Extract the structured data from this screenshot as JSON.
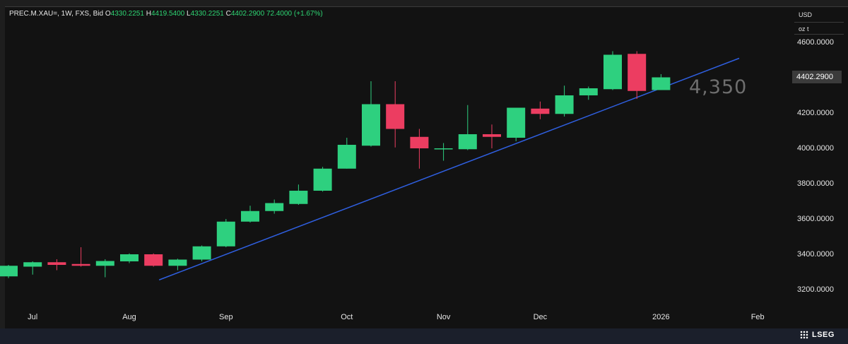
{
  "header": {
    "symbol": "PREC.M.XAU=, 1W, FXS, Bid",
    "open_label": "O",
    "open": "4330.2251",
    "high_label": "H",
    "high": "4419.5400",
    "low_label": "L",
    "low": "4330.2251",
    "close_label": "C",
    "close": "4402.2900",
    "change": "72.4000 (+1.67%)"
  },
  "units": {
    "currency": "USD",
    "weight": "oz t"
  },
  "last_price_label": "4402.2900",
  "annotation": "4,350",
  "brand": "LSEG",
  "colors": {
    "up": "#2ed07f",
    "down": "#ec3d61",
    "trendline": "#2f5fe0",
    "background": "#121212"
  },
  "chart_data": {
    "type": "candlestick",
    "interval": "1W",
    "ylim": [
      3100,
      4700
    ],
    "yticks": [
      "3200.0000",
      "3400.0000",
      "3600.0000",
      "3800.0000",
      "4000.0000",
      "4200.0000",
      "4400.0000",
      "4600.0000"
    ],
    "ytick_values": [
      3200,
      3400,
      3600,
      3800,
      4000,
      4200,
      4400,
      4600
    ],
    "xlabels": [
      {
        "label": "Jul",
        "week": 1
      },
      {
        "label": "Aug",
        "week": 5
      },
      {
        "label": "Sep",
        "week": 9
      },
      {
        "label": "Oct",
        "week": 14
      },
      {
        "label": "Nov",
        "week": 18
      },
      {
        "label": "Dec",
        "week": 22
      },
      {
        "label": "2026",
        "week": 27
      },
      {
        "label": "Feb",
        "week": 31
      }
    ],
    "candles": [
      {
        "week": 0,
        "o": 3275,
        "h": 3340,
        "l": 3265,
        "c": 3335
      },
      {
        "week": 1,
        "o": 3330,
        "h": 3360,
        "l": 3285,
        "c": 3355
      },
      {
        "week": 2,
        "o": 3355,
        "h": 3372,
        "l": 3310,
        "c": 3340
      },
      {
        "week": 3,
        "o": 3345,
        "h": 3440,
        "l": 3330,
        "c": 3335
      },
      {
        "week": 4,
        "o": 3335,
        "h": 3372,
        "l": 3270,
        "c": 3362
      },
      {
        "week": 5,
        "o": 3360,
        "h": 3405,
        "l": 3350,
        "c": 3400
      },
      {
        "week": 6,
        "o": 3400,
        "h": 3405,
        "l": 3330,
        "c": 3335
      },
      {
        "week": 7,
        "o": 3335,
        "h": 3375,
        "l": 3310,
        "c": 3370
      },
      {
        "week": 8,
        "o": 3370,
        "h": 3450,
        "l": 3360,
        "c": 3445
      },
      {
        "week": 9,
        "o": 3445,
        "h": 3600,
        "l": 3440,
        "c": 3585
      },
      {
        "week": 10,
        "o": 3585,
        "h": 3675,
        "l": 3580,
        "c": 3645
      },
      {
        "week": 11,
        "o": 3645,
        "h": 3710,
        "l": 3630,
        "c": 3690
      },
      {
        "week": 12,
        "o": 3685,
        "h": 3795,
        "l": 3680,
        "c": 3760
      },
      {
        "week": 13,
        "o": 3760,
        "h": 3895,
        "l": 3755,
        "c": 3885
      },
      {
        "week": 14,
        "o": 3885,
        "h": 4060,
        "l": 3885,
        "c": 4020
      },
      {
        "week": 15,
        "o": 4015,
        "h": 4380,
        "l": 4010,
        "c": 4250
      },
      {
        "week": 16,
        "o": 4250,
        "h": 4380,
        "l": 4005,
        "c": 4110
      },
      {
        "week": 17,
        "o": 4065,
        "h": 4110,
        "l": 3885,
        "c": 4000
      },
      {
        "week": 18,
        "o": 3998,
        "h": 4030,
        "l": 3930,
        "c": 4000
      },
      {
        "week": 19,
        "o": 3995,
        "h": 4245,
        "l": 3990,
        "c": 4080
      },
      {
        "week": 20,
        "o": 4080,
        "h": 4135,
        "l": 4000,
        "c": 4065
      },
      {
        "week": 21,
        "o": 4060,
        "h": 4230,
        "l": 4040,
        "c": 4230
      },
      {
        "week": 22,
        "o": 4225,
        "h": 4265,
        "l": 4165,
        "c": 4195
      },
      {
        "week": 23,
        "o": 4195,
        "h": 4355,
        "l": 4180,
        "c": 4300
      },
      {
        "week": 24,
        "o": 4300,
        "h": 4350,
        "l": 4275,
        "c": 4340
      },
      {
        "week": 25,
        "o": 4335,
        "h": 4550,
        "l": 4330,
        "c": 4530
      },
      {
        "week": 26,
        "o": 4535,
        "h": 4550,
        "l": 4280,
        "c": 4325
      },
      {
        "week": 27,
        "o": 4330,
        "h": 4420,
        "l": 4330,
        "c": 4402
      }
    ],
    "trendline": {
      "start": {
        "week": 6,
        "value": 3255
      },
      "end": {
        "week": 30,
        "value": 4510
      }
    }
  }
}
